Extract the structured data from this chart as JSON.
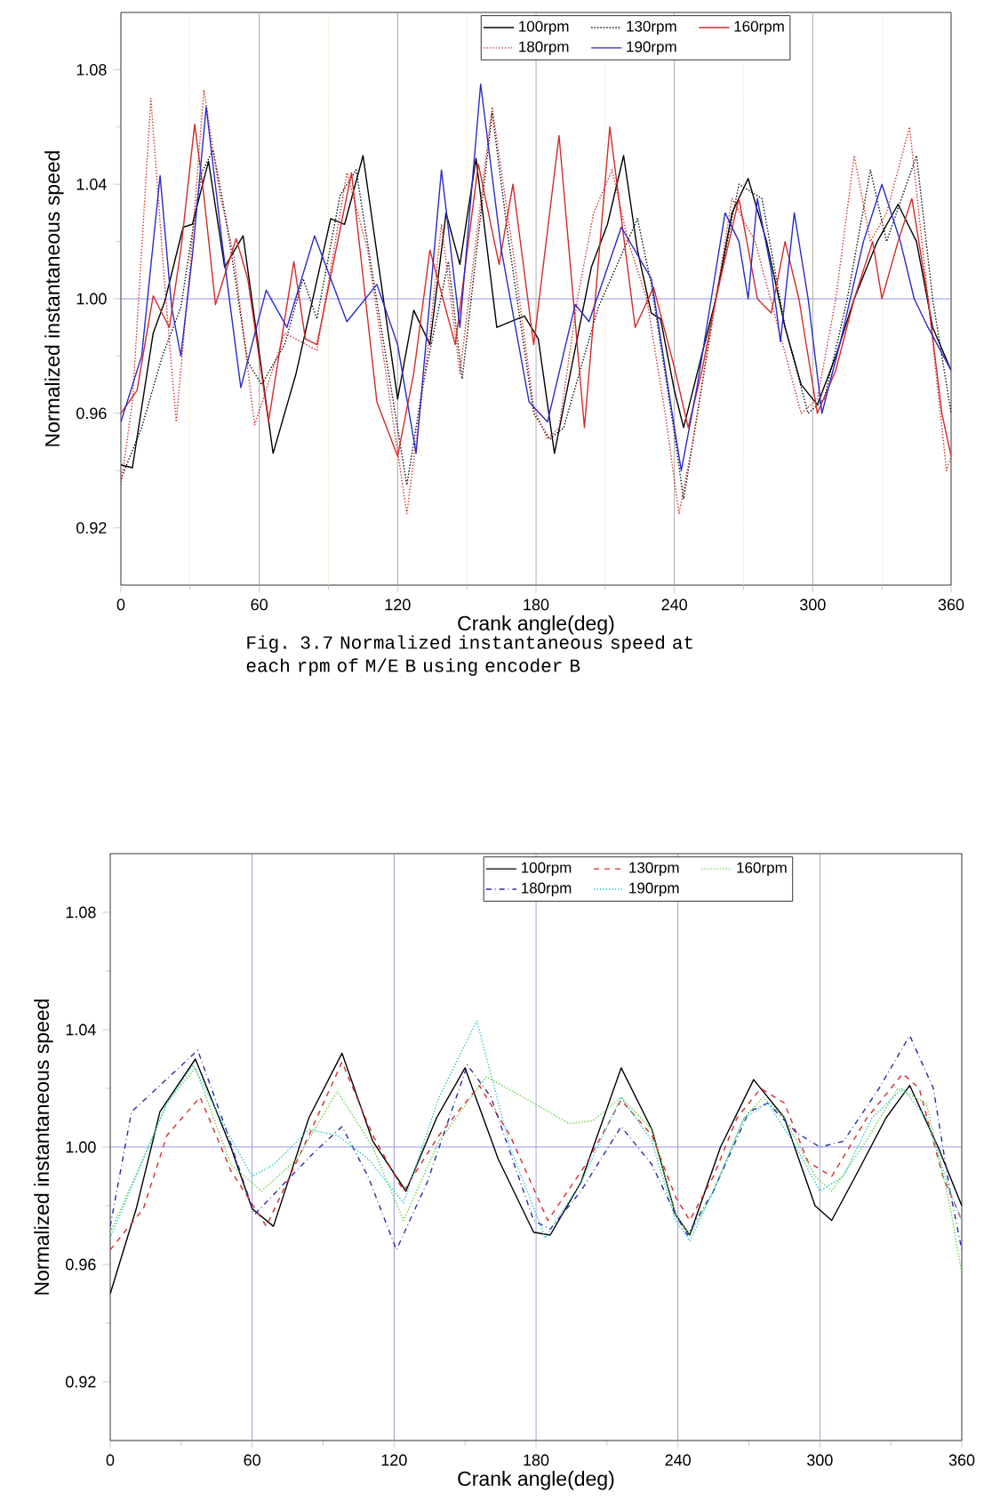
{
  "chart_data": [
    {
      "type": "line",
      "xlabel": "Crank angle(deg)",
      "ylabel": "Normalized instantaneous speed",
      "annotations": [
        "Fig. 3.7 Normalized instantaneous speed at each rpm of M/E B using encoder B"
      ],
      "xlim": [
        0,
        360
      ],
      "ylim": [
        0.9,
        1.1
      ],
      "xticks": [
        0,
        60,
        120,
        180,
        240,
        300,
        360
      ],
      "yticks": [
        0.92,
        0.96,
        {
          "value": 1.0,
          "label": "1.00"
        },
        1.04,
        1.08
      ],
      "legend": "top",
      "marker": "none",
      "ref_lines": [
        {
          "axis": "y",
          "value": 1.0,
          "color": "#8888e8"
        },
        {
          "axis": "x",
          "value": 60,
          "color": "#a8a8a8"
        },
        {
          "axis": "x",
          "value": 120,
          "color": "#a8a8a8"
        },
        {
          "axis": "x",
          "value": 180,
          "color": "#a8a8a8"
        },
        {
          "axis": "x",
          "value": 240,
          "color": "#a8a8a8"
        },
        {
          "axis": "x",
          "value": 300,
          "color": "#a8a8a8"
        },
        {
          "axis": "x",
          "value": 30,
          "color": "#e0dca0",
          "line_style": "dotted"
        },
        {
          "axis": "x",
          "value": 90,
          "color": "#e0dca0",
          "line_style": "dotted"
        },
        {
          "axis": "x",
          "value": 150,
          "color": "#e0dca0",
          "line_style": "dotted"
        },
        {
          "axis": "x",
          "value": 210,
          "color": "#e0dca0",
          "line_style": "dotted"
        },
        {
          "axis": "x",
          "value": 270,
          "color": "#e0dca0",
          "line_style": "dotted"
        },
        {
          "axis": "x",
          "value": 330,
          "color": "#e0dca0",
          "line_style": "dotted"
        }
      ],
      "series": [
        {
          "name": "100rpm",
          "color": "#000000",
          "line_style": "solid",
          "x": [
            0,
            5,
            14,
            19,
            27,
            31,
            38,
            45,
            53,
            66,
            76,
            91,
            97,
            105,
            120,
            127,
            134,
            141,
            147,
            154,
            163,
            175,
            181,
            188,
            204,
            211,
            218,
            224,
            230,
            234,
            240,
            244,
            258,
            265,
            272,
            280,
            288,
            295,
            302,
            310,
            318,
            328,
            337,
            345,
            352,
            360
          ],
          "values": [
            0.942,
            0.941,
            0.988,
            0.999,
            1.025,
            1.026,
            1.048,
            1.011,
            1.022,
            0.946,
            0.974,
            1.028,
            1.026,
            1.05,
            0.965,
            0.996,
            0.984,
            1.03,
            1.012,
            1.049,
            0.99,
            0.994,
            0.986,
            0.946,
            1.011,
            1.026,
            1.05,
            1.017,
            0.995,
            0.993,
            0.968,
            0.955,
            1.0,
            1.03,
            1.042,
            1.02,
            0.99,
            0.97,
            0.963,
            0.98,
            1.0,
            1.02,
            1.033,
            1.02,
            0.99,
            0.975
          ]
        },
        {
          "name": "130rpm",
          "color": "#000000",
          "line_style": "dotted",
          "x": [
            0,
            9,
            18,
            26,
            35,
            40,
            46,
            55,
            61,
            71,
            79,
            85,
            95,
            102,
            109,
            124,
            131,
            142,
            148,
            161,
            168,
            179,
            186,
            192,
            207,
            224,
            230,
            240,
            244,
            250,
            258,
            268,
            278,
            288,
            298,
            305,
            315,
            325,
            332,
            345,
            352,
            360
          ],
          "values": [
            0.937,
            0.955,
            0.98,
            0.997,
            1.044,
            1.052,
            1.026,
            0.978,
            0.97,
            0.984,
            1.007,
            0.993,
            1.036,
            1.045,
            1.009,
            0.935,
            0.97,
            1.013,
            0.972,
            1.065,
            1.021,
            0.96,
            0.951,
            0.955,
            0.997,
            1.028,
            1.005,
            0.953,
            0.93,
            0.96,
            1.0,
            1.04,
            1.035,
            0.99,
            0.96,
            0.965,
            1.0,
            1.045,
            1.02,
            1.05,
            1.0,
            0.96
          ]
        },
        {
          "name": "160rpm",
          "color": "#d42a2a",
          "line_style": "solid",
          "x": [
            0,
            7,
            14,
            21,
            26,
            32,
            36,
            41,
            50,
            55,
            64,
            75,
            80,
            85,
            100,
            111,
            120,
            127,
            134,
            145,
            155,
            164,
            170,
            179,
            190,
            201,
            212,
            223,
            231,
            240,
            246,
            252,
            258,
            268,
            276,
            282,
            288,
            294,
            302,
            310,
            318,
            326,
            330,
            337,
            343,
            350,
            356,
            360
          ],
          "values": [
            0.96,
            0.968,
            1.001,
            0.99,
            1.017,
            1.061,
            1.036,
            0.998,
            1.021,
            1.007,
            0.957,
            1.013,
            0.986,
            0.984,
            1.044,
            0.964,
            0.945,
            0.974,
            1.017,
            0.984,
            1.047,
            1.012,
            1.04,
            0.984,
            1.057,
            0.955,
            1.06,
            0.99,
            1.004,
            0.976,
            0.955,
            0.975,
            1.0,
            1.035,
            1.0,
            0.995,
            1.02,
            1.0,
            0.96,
            0.975,
            1.0,
            1.02,
            1.0,
            1.02,
            1.035,
            1.0,
            0.96,
            0.945
          ]
        },
        {
          "name": "180rpm",
          "color": "#d42a2a",
          "line_style": "dotted",
          "x": [
            0,
            5,
            13,
            19,
            24,
            30,
            36,
            43,
            49,
            58,
            71,
            85,
            98,
            107,
            124,
            134,
            139,
            147,
            161,
            171,
            179,
            185,
            190,
            198,
            205,
            213,
            220,
            228,
            236,
            242,
            248,
            258,
            265,
            275,
            285,
            295,
            302,
            310,
            318,
            325,
            332,
            342,
            350,
            358,
            360
          ],
          "values": [
            0.935,
            0.964,
            1.07,
            1.005,
            0.957,
            1.011,
            1.073,
            1.036,
            1.015,
            0.956,
            0.988,
            0.982,
            1.044,
            1.017,
            0.925,
            0.988,
            1.026,
            0.974,
            1.067,
            1.011,
            0.962,
            0.951,
            0.955,
            1.0,
            1.03,
            1.045,
            1.02,
            1.0,
            0.96,
            0.925,
            0.95,
            1.0,
            1.035,
            1.02,
            0.99,
            0.96,
            0.965,
            1.0,
            1.05,
            1.02,
            1.03,
            1.06,
            1.0,
            0.94,
            0.945
          ]
        },
        {
          "name": "190rpm",
          "color": "#2a2acc",
          "line_style": "solid",
          "x": [
            0,
            9,
            17,
            22,
            26,
            31,
            37,
            44,
            52,
            63,
            72,
            84,
            98,
            111,
            120,
            128,
            139,
            147,
            156,
            165,
            177,
            185,
            197,
            203,
            217,
            230,
            240,
            243,
            250,
            256,
            262,
            268,
            272,
            276,
            282,
            286,
            292,
            298,
            304,
            312,
            322,
            330,
            338,
            344,
            350,
            360
          ],
          "values": [
            0.957,
            0.98,
            1.043,
            0.997,
            0.98,
            1.015,
            1.067,
            1.019,
            0.969,
            1.003,
            0.99,
            1.022,
            0.992,
            1.005,
            0.984,
            0.946,
            1.045,
            0.99,
            1.075,
            1.017,
            0.964,
            0.957,
            0.998,
            0.992,
            1.025,
            1.007,
            0.955,
            0.94,
            0.97,
            1.0,
            1.03,
            1.02,
            1.0,
            1.035,
            1.01,
            0.985,
            1.03,
            1.0,
            0.96,
            0.985,
            1.02,
            1.04,
            1.02,
            1.0,
            0.99,
            0.975
          ]
        }
      ]
    },
    {
      "type": "line",
      "xlabel": "Crank angle(deg)",
      "ylabel": "Normalized instantaneous speed",
      "xlim": [
        0,
        360
      ],
      "ylim": [
        0.9,
        1.1
      ],
      "xticks": [
        0,
        60,
        120,
        180,
        240,
        300,
        360
      ],
      "yticks": [
        0.92,
        0.96,
        {
          "value": 1.0,
          "label": "1.00"
        },
        1.04,
        1.08
      ],
      "legend": "top",
      "marker": "none",
      "ref_lines": [
        {
          "axis": "y",
          "value": 1.0,
          "color": "#8888e8"
        },
        {
          "axis": "x",
          "value": 60,
          "color": "#9a9ad0"
        },
        {
          "axis": "x",
          "value": 120,
          "color": "#9a9ad0"
        },
        {
          "axis": "x",
          "value": 180,
          "color": "#9a9ad0"
        },
        {
          "axis": "x",
          "value": 240,
          "color": "#9a9ad0"
        },
        {
          "axis": "x",
          "value": 300,
          "color": "#9a9ad0"
        }
      ],
      "series": [
        {
          "name": "100rpm",
          "color": "#000000",
          "line_style": "solid",
          "x": [
            0,
            11,
            21,
            36,
            51,
            60,
            69,
            84,
            98,
            111,
            125,
            138,
            150,
            164,
            179,
            186,
            199,
            216,
            229,
            239,
            245,
            258,
            272,
            285,
            298,
            305,
            315,
            328,
            338,
            350,
            360
          ],
          "values": [
            0.95,
            0.979,
            1.012,
            1.03,
            1.0,
            0.979,
            0.973,
            1.01,
            1.032,
            1.002,
            0.985,
            1.01,
            1.027,
            0.996,
            0.971,
            0.97,
            0.988,
            1.027,
            1.006,
            0.977,
            0.97,
            1.0,
            1.023,
            1.01,
            0.98,
            0.975,
            0.99,
            1.01,
            1.021,
            1.0,
            0.98
          ]
        },
        {
          "name": "130rpm",
          "color": "#dd2a2a",
          "line_style": "dashed",
          "x": [
            0,
            14,
            24,
            38,
            51,
            66,
            84,
            98,
            111,
            124,
            139,
            156,
            169,
            185,
            201,
            216,
            229,
            239,
            245,
            255,
            265,
            275,
            285,
            295,
            305,
            320,
            335,
            342,
            352,
            360
          ],
          "values": [
            0.965,
            0.979,
            1.004,
            1.017,
            0.992,
            0.973,
            1.004,
            1.029,
            1.004,
            0.985,
            1.004,
            1.021,
            1.004,
            0.975,
            0.994,
            1.016,
            1.004,
            0.983,
            0.975,
            0.99,
            1.01,
            1.02,
            1.015,
            0.995,
            0.99,
            1.01,
            1.025,
            1.02,
            0.99,
            0.975
          ]
        },
        {
          "name": "160rpm",
          "color": "#66cc44",
          "line_style": "dotted",
          "x": [
            0,
            14,
            24,
            36,
            51,
            64,
            79,
            96,
            111,
            124,
            139,
            159,
            179,
            194,
            204,
            216,
            229,
            239,
            245,
            255,
            268,
            276,
            285,
            298,
            305,
            318,
            333,
            345,
            355,
            360
          ],
          "values": [
            0.971,
            0.996,
            1.015,
            1.027,
            0.994,
            0.985,
            0.996,
            1.019,
            1.0,
            0.975,
            1.002,
            1.024,
            1.015,
            1.008,
            1.009,
            1.017,
            1.006,
            0.977,
            0.97,
            0.985,
            1.01,
            1.017,
            1.01,
            0.99,
            0.985,
            1.0,
            1.02,
            1.015,
            0.98,
            0.957
          ]
        },
        {
          "name": "180rpm",
          "color": "#2a2aaa",
          "line_style": "dashdot",
          "x": [
            0,
            9,
            21,
            37,
            49,
            61,
            74,
            86,
            98,
            109,
            121,
            134,
            151,
            161,
            179,
            186,
            199,
            216,
            229,
            239,
            244,
            255,
            270,
            278,
            290,
            300,
            310,
            325,
            338,
            348,
            355,
            360
          ],
          "values": [
            0.973,
            1.012,
            1.021,
            1.033,
            1.006,
            0.977,
            0.988,
            0.998,
            1.007,
            0.99,
            0.965,
            0.988,
            1.028,
            1.017,
            0.975,
            0.972,
            0.985,
            1.007,
            0.994,
            0.977,
            0.97,
            0.985,
            1.012,
            1.015,
            1.005,
            1.0,
            1.002,
            1.02,
            1.038,
            1.02,
            0.985,
            0.965
          ]
        },
        {
          "name": "190rpm",
          "color": "#2ac8c8",
          "line_style": "dotted",
          "x": [
            0,
            14,
            24,
            35,
            49,
            60,
            69,
            84,
            96,
            109,
            124,
            139,
            155,
            169,
            184,
            199,
            216,
            229,
            239,
            245,
            255,
            268,
            278,
            290,
            300,
            310,
            322,
            335,
            345,
            355,
            360
          ],
          "values": [
            0.969,
            0.996,
            1.015,
            1.028,
            1.006,
            0.99,
            0.994,
            1.006,
            1.004,
            0.996,
            0.981,
            1.017,
            1.043,
            1.0,
            0.969,
            0.988,
            1.017,
            1.002,
            0.975,
            0.968,
            0.985,
            1.01,
            1.015,
            1.0,
            0.985,
            0.99,
            1.01,
            1.02,
            1.01,
            0.985,
            0.975
          ]
        }
      ]
    }
  ]
}
